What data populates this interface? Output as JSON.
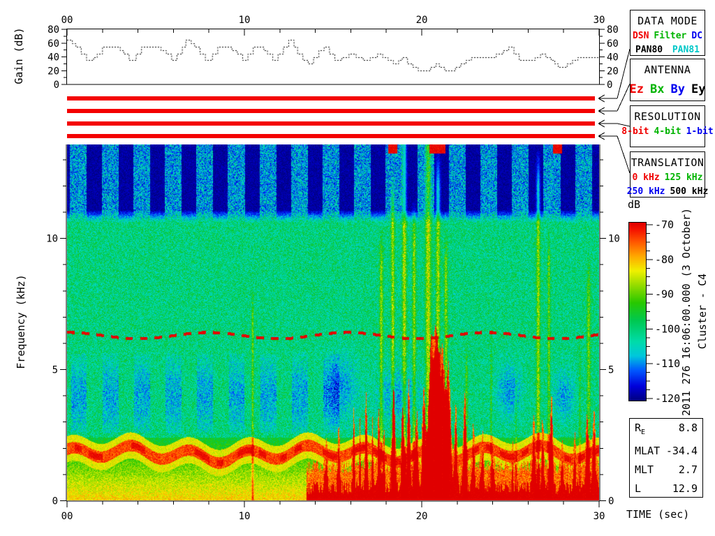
{
  "gain_plot": {
    "ylabel": "Gain (dB)",
    "yticks": [
      0,
      20,
      40,
      60,
      80
    ],
    "yminor": [
      10,
      30,
      50,
      70
    ],
    "top_xticks": [
      {
        "t": 0,
        "label": "00"
      },
      {
        "t": 10,
        "label": "10"
      },
      {
        "t": 20,
        "label": "20"
      },
      {
        "t": 30,
        "label": "30"
      }
    ],
    "ylim": [
      0,
      80
    ],
    "xlim": [
      0,
      30
    ]
  },
  "panels": [
    {
      "title": "DATA MODE",
      "spread_last": true,
      "lines": [
        [
          {
            "t": "DSN",
            "c": "#f00000"
          },
          {
            "t": "Filter",
            "c": "#00b400"
          },
          {
            "t": "DC",
            "c": "#0000f0"
          }
        ],
        [
          {
            "t": "PAN80",
            "c": "#000000"
          },
          {
            "t": "PAN81",
            "c": "#00c8c8"
          }
        ]
      ]
    },
    {
      "title": "ANTENNA",
      "big": true,
      "lines": [
        [
          {
            "t": "Ez",
            "c": "#f00000"
          },
          {
            "t": "Bx",
            "c": "#00b400"
          },
          {
            "t": "By",
            "c": "#0000f0"
          },
          {
            "t": "Ey",
            "c": "#000000"
          }
        ]
      ]
    },
    {
      "title": "RESOLUTION",
      "lines": [
        [
          {
            "t": "8-bit",
            "c": "#f00000"
          },
          {
            "t": "4-bit",
            "c": "#00b400"
          },
          {
            "t": "1-bit",
            "c": "#0000f0"
          }
        ]
      ]
    },
    {
      "title": "TRANSLATION",
      "lines": [
        [
          {
            "t": "0 kHz",
            "c": "#f00000"
          },
          {
            "t": "125 kHz",
            "c": "#00b400"
          }
        ],
        [
          {
            "t": "250 kHz",
            "c": "#0000f0"
          },
          {
            "t": "500 kHz",
            "c": "#000000"
          }
        ]
      ]
    }
  ],
  "mode_bars": {
    "count": 4,
    "color": "#f40000"
  },
  "colorbar": {
    "label": "dB",
    "max": -70,
    "min": -120,
    "major_ticks": [
      -70,
      -80,
      -90,
      -100,
      -110,
      -120
    ],
    "minor_step": 2.5
  },
  "side_text": {
    "datetime": "2011 276 16:06:00.000 (3 October)",
    "spacecraft": "Cluster - C4"
  },
  "ephemeris": {
    "rows": [
      {
        "label": "R",
        "sub": "E",
        "value": "8.8"
      },
      {
        "label": "MLAT",
        "value": "-34.4"
      },
      {
        "label": "MLT",
        "value": "2.7"
      },
      {
        "label": "L",
        "value": "12.9"
      }
    ]
  },
  "spectrogram": {
    "xlabel": "TIME (sec)",
    "ylabel": "Frequency (kHz)",
    "xticks": [
      {
        "t": 0,
        "label": "00"
      },
      {
        "t": 10,
        "label": "10"
      },
      {
        "t": 20,
        "label": "20"
      },
      {
        "t": 30,
        "label": "30"
      }
    ],
    "xminor_step": 2,
    "yticks": [
      0,
      5,
      10
    ],
    "t_max": 30,
    "f_max": 13.58,
    "stripes": {
      "f_min": 10.6,
      "period": 1.78,
      "phase": 0.15,
      "duty": 0.95
    },
    "blobs": {
      "f_min": 2.6,
      "f_max": 5.6,
      "period": 1.78,
      "phase": 0.2,
      "duty": 0.9,
      "t_end": 15.5
    },
    "blue_patches": [
      [
        15.5,
        4.3,
        0.8,
        1.2
      ],
      [
        18.7,
        4.0,
        1.2,
        1.0
      ],
      [
        24.9,
        4.2,
        0.7,
        1.0
      ],
      [
        28.0,
        4.0,
        0.6,
        0.9
      ]
    ],
    "band": {
      "f0": 1.78,
      "a1": 0.22,
      "w1": 1.9,
      "p1": 1.0,
      "a2": 0.12,
      "w2": 0.55
    },
    "line": {
      "f0": 6.3,
      "amp": 0.12,
      "om": 0.8,
      "ph": 1.5,
      "dash_period": 0.82,
      "dash_on": 0.42
    },
    "red_floor": {
      "t_start": 13.5,
      "base": 0.5,
      "spikes": [
        [
          14.6,
          1.2,
          0.1
        ],
        [
          15.3,
          1.5,
          0.08
        ],
        [
          16.15,
          2.3,
          0.06
        ],
        [
          16.5,
          1.9,
          0.05
        ],
        [
          16.85,
          2.9,
          0.07
        ],
        [
          17.2,
          2.0,
          0.05
        ],
        [
          17.55,
          2.4,
          0.06
        ],
        [
          17.85,
          1.5,
          0.05
        ],
        [
          18.4,
          3.0,
          0.1
        ],
        [
          18.9,
          2.4,
          0.08
        ],
        [
          19.25,
          3.4,
          0.1
        ],
        [
          19.7,
          2.0,
          0.1
        ],
        [
          20.1,
          3.0,
          0.12
        ],
        [
          20.5,
          4.2,
          0.18
        ],
        [
          20.8,
          4.8,
          0.2
        ],
        [
          21.15,
          4.4,
          0.2
        ],
        [
          21.5,
          3.6,
          0.15
        ],
        [
          21.9,
          2.2,
          0.1
        ],
        [
          22.4,
          2.8,
          0.1
        ],
        [
          22.9,
          1.6,
          0.08
        ],
        [
          23.4,
          1.2,
          0.1
        ],
        [
          24.0,
          0.9,
          0.08
        ],
        [
          25.1,
          0.8,
          0.06
        ],
        [
          26.3,
          2.2,
          0.1
        ],
        [
          26.8,
          1.8,
          0.08
        ],
        [
          27.3,
          2.6,
          0.1
        ],
        [
          27.9,
          1.0,
          0.08
        ],
        [
          28.6,
          1.3,
          0.08
        ],
        [
          29.3,
          2.0,
          0.1
        ],
        [
          29.7,
          2.4,
          0.1
        ]
      ]
    },
    "streaks": [
      [
        10.45,
        10,
        7,
        0.06
      ],
      [
        17.7,
        12,
        9,
        0.1
      ],
      [
        18.35,
        13,
        11,
        0.1
      ],
      [
        19.0,
        14,
        13.6,
        0.12
      ],
      [
        19.55,
        12,
        10,
        0.1
      ],
      [
        20.35,
        15,
        13.6,
        0.16
      ],
      [
        20.9,
        13,
        12,
        0.12
      ],
      [
        21.35,
        11,
        9,
        0.1
      ],
      [
        22.5,
        8,
        5,
        0.07
      ],
      [
        23.9,
        7,
        5,
        0.06
      ],
      [
        25.3,
        6,
        4,
        0.05
      ],
      [
        26.55,
        13,
        12,
        0.1
      ],
      [
        27.15,
        10,
        9,
        0.08
      ],
      [
        28.9,
        6,
        5,
        0.06
      ],
      [
        29.4,
        10,
        8,
        0.1
      ]
    ],
    "top_dashes": [
      [
        18.1,
        18.6
      ],
      [
        20.4,
        21.3
      ],
      [
        27.4,
        27.9
      ]
    ],
    "colormap": [
      [
        0,
        "#000082"
      ],
      [
        0.08,
        "#0000dc"
      ],
      [
        0.17,
        "#005aff"
      ],
      [
        0.25,
        "#00c8dc"
      ],
      [
        0.33,
        "#00dcaa"
      ],
      [
        0.45,
        "#00c850"
      ],
      [
        0.55,
        "#28c800"
      ],
      [
        0.65,
        "#96dc00"
      ],
      [
        0.73,
        "#f0f000"
      ],
      [
        0.81,
        "#ffaa00"
      ],
      [
        0.9,
        "#ff5000"
      ],
      [
        0.96,
        "#f51400"
      ],
      [
        1,
        "#e00000"
      ]
    ]
  },
  "chart_data": [
    {
      "type": "line",
      "title": "Receiver gain vs time",
      "xlabel": "TIME (sec)",
      "ylabel": "Gain (dB)",
      "xlim": [
        0,
        30
      ],
      "ylim": [
        0,
        80
      ],
      "grid": false,
      "series": [
        {
          "name": "gain",
          "step": true,
          "points": [
            [
              0,
              65
            ],
            [
              0.3,
              60
            ],
            [
              0.5,
              55
            ],
            [
              0.8,
              45
            ],
            [
              1.1,
              35
            ],
            [
              1.5,
              40
            ],
            [
              1.7,
              45
            ],
            [
              2.0,
              55
            ],
            [
              3.0,
              50
            ],
            [
              3.2,
              45
            ],
            [
              3.5,
              35
            ],
            [
              3.9,
              45
            ],
            [
              4.2,
              55
            ],
            [
              5.3,
              50
            ],
            [
              5.6,
              45
            ],
            [
              5.9,
              35
            ],
            [
              6.2,
              45
            ],
            [
              6.5,
              55
            ],
            [
              6.7,
              65
            ],
            [
              7.0,
              60
            ],
            [
              7.2,
              55
            ],
            [
              7.5,
              45
            ],
            [
              7.8,
              35
            ],
            [
              8.2,
              45
            ],
            [
              8.5,
              55
            ],
            [
              9.3,
              50
            ],
            [
              9.6,
              45
            ],
            [
              9.9,
              35
            ],
            [
              10.2,
              45
            ],
            [
              10.5,
              55
            ],
            [
              11.1,
              50
            ],
            [
              11.3,
              45
            ],
            [
              11.6,
              35
            ],
            [
              11.9,
              45
            ],
            [
              12.2,
              55
            ],
            [
              12.5,
              65
            ],
            [
              12.8,
              55
            ],
            [
              13.0,
              45
            ],
            [
              13.3,
              35
            ],
            [
              13.6,
              30
            ],
            [
              13.9,
              40
            ],
            [
              14.2,
              50
            ],
            [
              14.5,
              55
            ],
            [
              14.8,
              45
            ],
            [
              15.1,
              35
            ],
            [
              15.5,
              40
            ],
            [
              15.9,
              45
            ],
            [
              16.3,
              40
            ],
            [
              16.7,
              35
            ],
            [
              17.1,
              40
            ],
            [
              17.5,
              45
            ],
            [
              17.8,
              40
            ],
            [
              18.1,
              35
            ],
            [
              18.4,
              30
            ],
            [
              18.7,
              35
            ],
            [
              18.9,
              40
            ],
            [
              19.2,
              30
            ],
            [
              19.5,
              25
            ],
            [
              19.8,
              20
            ],
            [
              20.5,
              25
            ],
            [
              20.8,
              30
            ],
            [
              21.0,
              25
            ],
            [
              21.3,
              20
            ],
            [
              21.9,
              25
            ],
            [
              22.2,
              30
            ],
            [
              22.5,
              35
            ],
            [
              22.8,
              40
            ],
            [
              24.2,
              45
            ],
            [
              24.6,
              50
            ],
            [
              24.9,
              55
            ],
            [
              25.2,
              45
            ],
            [
              25.5,
              35
            ],
            [
              26.4,
              40
            ],
            [
              26.7,
              45
            ],
            [
              27.0,
              40
            ],
            [
              27.3,
              35
            ],
            [
              27.5,
              30
            ],
            [
              27.7,
              25
            ],
            [
              28.2,
              30
            ],
            [
              28.5,
              35
            ],
            [
              28.8,
              40
            ],
            [
              30,
              40
            ]
          ]
        }
      ]
    },
    {
      "type": "heatmap",
      "title": "Cluster C4 WBD wideband spectrogram",
      "xlabel": "TIME (sec)",
      "ylabel": "Frequency (kHz)",
      "xlim": [
        0,
        30
      ],
      "ylim": [
        0,
        13.58
      ],
      "colorbar": {
        "label": "dB",
        "min": -120,
        "max": -70,
        "ticks": [
          -70,
          -80,
          -90,
          -100,
          -110,
          -120
        ]
      },
      "start_time": "2011 276 16:06:00.000 (3 October)",
      "annotations": [
        "Periodic cyan noise columns above ~11 kHz, period ~1.78 s, on navy background",
        "Dashed red narrowband emission near 6.3 kHz across full 30 s",
        "Dark blue absorption blobs 2.6-5.6 kHz, period ~1.78 s, t < ~15.5 s",
        "Intense wavy yellow/red band near 1.8 kHz",
        "Broadband red impulsive bursts below ~5 kHz from ~14 s, strongest 20-22 s",
        "Tall green broadband streaks near 18-21.5 s and 26.5-27 s"
      ]
    }
  ]
}
